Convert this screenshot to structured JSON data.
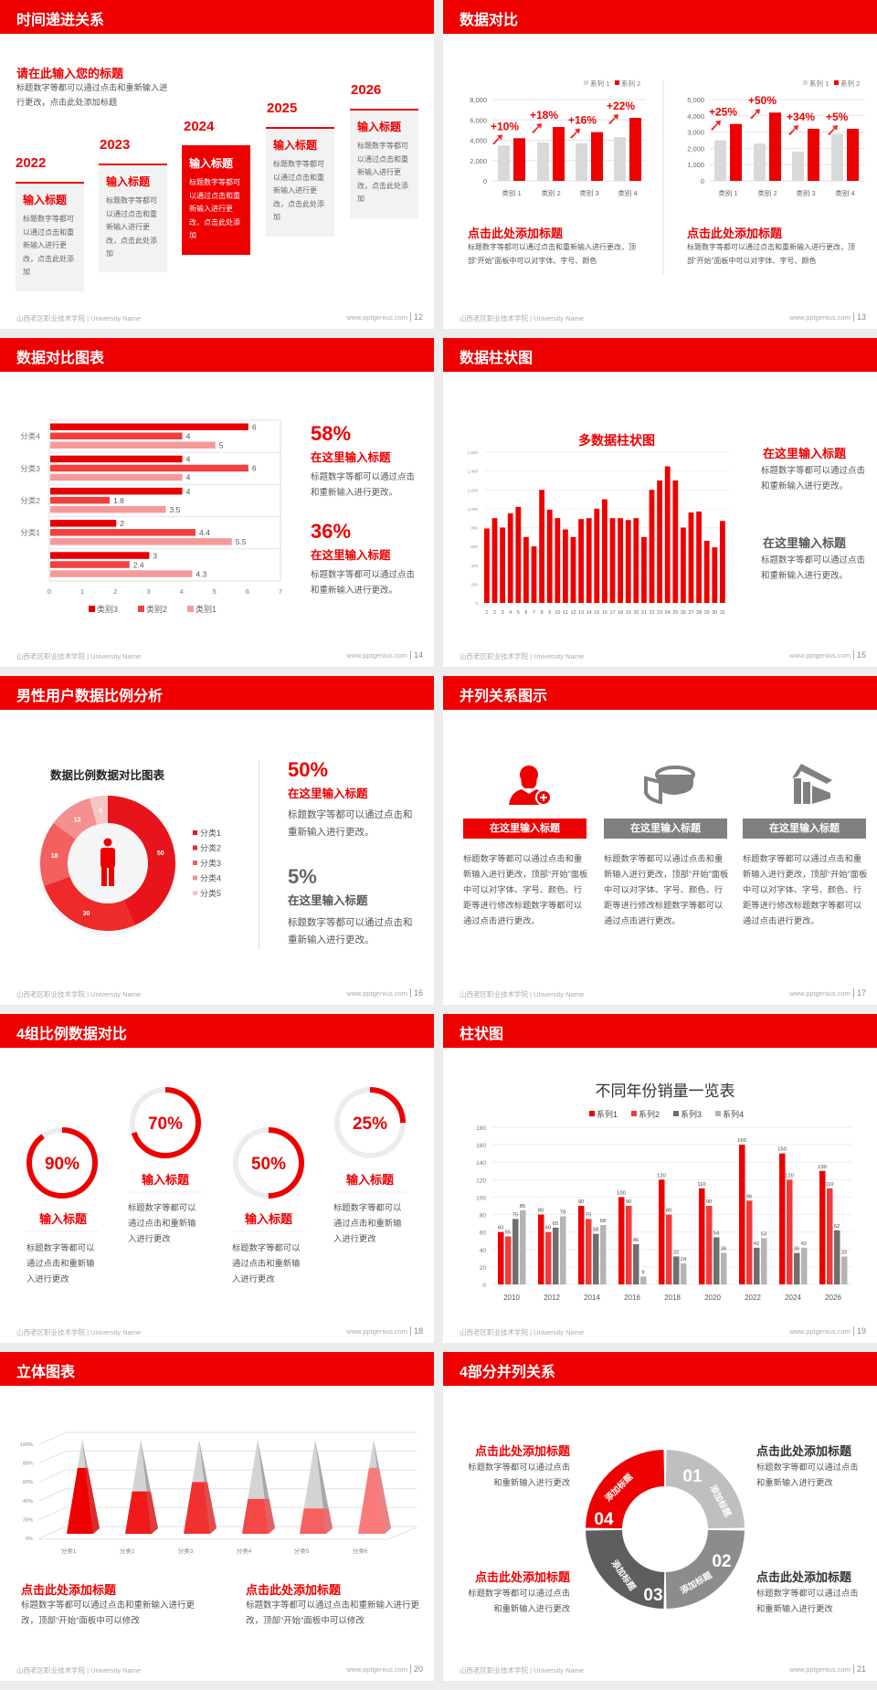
{
  "footer": {
    "school": "山西老区职业技术学院 | University Name",
    "url": "www.pptgenius.com"
  },
  "colors": {
    "accent": "#ee0000",
    "dark_gray": "#595959",
    "mid_gray": "#808080",
    "light_gray": "#bfbfbf"
  },
  "slides": {
    "s12": {
      "title": "时间递进关系",
      "page": "12",
      "heading": "请在此输入您的标题",
      "desc": "标题数字等都可以通过点击和重新输入进行更改，点击此处添加标题",
      "items": [
        {
          "year": "2022",
          "title": "输入标题",
          "text": "标题数字等都可以通过点击和重新输入进行更改，点击此处添加",
          "highlight": false
        },
        {
          "year": "2023",
          "title": "输入标题",
          "text": "标题数字等都可以通过点击和重新输入进行更改，点击此处添加",
          "highlight": false
        },
        {
          "year": "2024",
          "title": "输入标题",
          "text": "标题数字等都可以通过点击和重新输入进行更改，点击此处添加",
          "highlight": true
        },
        {
          "year": "2025",
          "title": "输入标题",
          "text": "标题数字等都可以通过点击和重新输入进行更改，点击此处添加",
          "highlight": false
        },
        {
          "year": "2026",
          "title": "输入标题",
          "text": "标题数字等都可以通过点击和重新输入进行更改，点击此处添加",
          "highlight": false
        }
      ]
    },
    "s13": {
      "title": "数据对比",
      "page": "13",
      "blocks": [
        {
          "title": "点击此处添加标题",
          "text": "标题数字等都可以通过点击和重新输入进行更改，顶部“开始”面板中可以对字体、字号、颜色"
        },
        {
          "title": "点击此处添加标题",
          "text": "标题数字等都可以通过点击和重新输入进行更改，顶部“开始”面板中可以对字体、字号、颜色"
        }
      ]
    },
    "s14": {
      "title": "数据对比图表",
      "page": "14",
      "stats": [
        {
          "value": "58%",
          "title": "在这里输入标题",
          "text": "标题数字等都可以通过点击和重新输入进行更改。"
        },
        {
          "value": "36%",
          "title": "在这里输入标题",
          "text": "标题数字等都可以通过点击和重新输入进行更改。"
        }
      ]
    },
    "s15": {
      "title": "数据柱状图",
      "page": "15",
      "blocks": [
        {
          "title": "在这里输入标题",
          "text": "标题数字等都可以通过点击和重新输入进行更改。"
        },
        {
          "title": "在这里输入标题",
          "text": "标题数字等都可以通过点击和重新输入进行更改。"
        }
      ]
    },
    "s16": {
      "title": "男性用户数据比例分析",
      "page": "16",
      "stats": [
        {
          "value": "50%",
          "title": "在这里输入标题",
          "text": "标题数字等都可以通过点击和重新输入进行更改。"
        },
        {
          "value": "5%",
          "title": "在这里输入标题",
          "text": "标题数字等都可以通过点击和重新输入进行更改。"
        }
      ]
    },
    "s17": {
      "title": "并列关系图示",
      "page": "17",
      "items": [
        {
          "icon": "user-add-icon",
          "label": "在这里输入标题",
          "text": "标题数字等都可以通过点击和重新输入进行更改，顶部“开始”面板中可以对字体、字号、颜色、行距等进行修改标题数字等都可以通过点击进行更改。"
        },
        {
          "icon": "pie-chart-icon",
          "label": "在这里输入标题",
          "text": "标题数字等都可以通过点击和重新输入进行更改，顶部“开始”面板中可以对字体、字号、颜色、行距等进行修改标题数字等都可以通过点击进行更改。"
        },
        {
          "icon": "house-icon",
          "label": "在这里输入标题",
          "text": "标题数字等都可以通过点击和重新输入进行更改，顶部“开始”面板中可以对字体、字号、颜色、行距等进行修改标题数字等都可以通过点击进行更改。"
        }
      ]
    },
    "s18": {
      "title": "4组比例数据对比",
      "page": "18",
      "items": [
        {
          "percent": 90,
          "label": "90%",
          "title": "输入标题",
          "text": "标题数字等都可以通过点击和重新输入进行更改"
        },
        {
          "percent": 70,
          "label": "70%",
          "title": "输入标题",
          "text": "标题数字等都可以通过点击和重新输入进行更改"
        },
        {
          "percent": 50,
          "label": "50%",
          "title": "输入标题",
          "text": "标题数字等都可以通过点击和重新输入进行更改"
        },
        {
          "percent": 25,
          "label": "25%",
          "title": "输入标题",
          "text": "标题数字等都可以通过点击和重新输入进行更改"
        }
      ]
    },
    "s19": {
      "title": "柱状图",
      "page": "19"
    },
    "s20": {
      "title": "立体图表",
      "page": "20",
      "blocks": [
        {
          "title": "点击此处添加标题",
          "text": "标题数字等都可以通过点击和重新输入进行更改，顶部“开始”面板中可以修改"
        },
        {
          "title": "点击此处添加标题",
          "text": "标题数字等都可以通过点击和重新输入进行更改，顶部“开始”面板中可以修改"
        }
      ]
    },
    "s21": {
      "title": "4部分并列关系",
      "page": "21",
      "segments": [
        {
          "num": "01",
          "label": "添加标题"
        },
        {
          "num": "02",
          "label": "添加标题"
        },
        {
          "num": "03",
          "label": "添加标题"
        },
        {
          "num": "04",
          "label": "添加标题"
        }
      ],
      "blocks": [
        {
          "title": "点击此处添加标题",
          "text": "标题数字等都可以通过点击和重新输入进行更改"
        },
        {
          "title": "点击此处添加标题",
          "text": "标题数字等都可以通过点击和重新输入进行更改"
        },
        {
          "title": "点击此处添加标题",
          "text": "标题数字等都可以通过点击和重新输入进行更改"
        },
        {
          "title": "点击此处添加标题",
          "text": "标题数字等都可以通过点击和重新输入进行更改"
        }
      ]
    }
  },
  "chart_data": [
    {
      "type": "bar",
      "categories": [
        "类别 1",
        "类别 2",
        "类别 3",
        "类别 4"
      ],
      "series": [
        {
          "name": "系列 1",
          "values": [
            3500,
            3800,
            3700,
            4300
          ],
          "color": "#d9d9d9"
        },
        {
          "name": "系列 2",
          "values": [
            4200,
            5300,
            4800,
            6200
          ],
          "color": "#ee0000"
        }
      ],
      "annotations": [
        "+10%",
        "+18%",
        "+16%",
        "+22%"
      ],
      "ylim": [
        0,
        8000
      ],
      "yticks": [
        0,
        2000,
        4000,
        6000,
        8000
      ],
      "ytick_labels": [
        "0",
        "2,000",
        "4,000",
        "6,000",
        "8,000"
      ],
      "grid": true,
      "legend": "top-right"
    },
    {
      "type": "bar",
      "categories": [
        "类别 1",
        "类别 2",
        "类别 3",
        "类别 4"
      ],
      "series": [
        {
          "name": "系列 1",
          "values": [
            2500,
            2300,
            1800,
            2900
          ],
          "color": "#d9d9d9"
        },
        {
          "name": "系列 2",
          "values": [
            3500,
            4200,
            3200,
            3200
          ],
          "color": "#ee0000"
        }
      ],
      "annotations": [
        "+25%",
        "+50%",
        "+34%",
        "+5%"
      ],
      "ylim": [
        0,
        5000
      ],
      "yticks": [
        0,
        1000,
        2000,
        3000,
        4000,
        5000
      ],
      "ytick_labels": [
        "0",
        "1,000",
        "2,000",
        "3,000",
        "4,000",
        "5,000"
      ],
      "grid": true,
      "legend": "top-right"
    },
    {
      "type": "bar",
      "orientation": "horizontal",
      "categories": [
        "分类4",
        "分类3",
        "分类2",
        "分类1",
        ""
      ],
      "series": [
        {
          "name": "类别3",
          "values": [
            6,
            4,
            4,
            2,
            3
          ],
          "color": "#e60000"
        },
        {
          "name": "类别2",
          "values": [
            4,
            6,
            1.8,
            4.4,
            2.4
          ],
          "color": "#f04040"
        },
        {
          "name": "类别1",
          "values": [
            5,
            4,
            3.5,
            5.5,
            4.3
          ],
          "color": "#f59a9a"
        }
      ],
      "xlim": [
        0,
        7
      ],
      "xticks": [
        "0",
        "1",
        "2",
        "3",
        "4",
        "5",
        "6",
        "7"
      ],
      "grid": true,
      "legend": "bottom"
    },
    {
      "type": "bar",
      "title": "多数据柱状图",
      "categories": [
        "1",
        "2",
        "3",
        "4",
        "5",
        "6",
        "7",
        "8",
        "9",
        "10",
        "11",
        "12",
        "13",
        "14",
        "15",
        "16",
        "17",
        "18",
        "19",
        "20",
        "21",
        "22",
        "23",
        "24",
        "25",
        "26",
        "27",
        "28",
        "29",
        "30",
        "31"
      ],
      "values": [
        790,
        900,
        800,
        950,
        1020,
        700,
        600,
        1200,
        990,
        900,
        780,
        700,
        890,
        900,
        1000,
        1100,
        900,
        900,
        880,
        900,
        700,
        1200,
        1300,
        1450,
        1300,
        800,
        960,
        970,
        660,
        590,
        870
      ],
      "ylim": [
        0,
        1600
      ],
      "yticks": [
        0,
        200,
        400,
        600,
        800,
        1000,
        1200,
        1400,
        1600
      ],
      "ytick_labels": [
        "0",
        "200",
        "400",
        "600",
        "800",
        "1,000",
        "1,200",
        "1,400",
        "1,600"
      ],
      "grid": true,
      "color": "#ee0000"
    },
    {
      "type": "pie",
      "title": "数据比例数据对比图表",
      "categories": [
        "分类1",
        "分类2",
        "分类3",
        "分类4",
        "分类5"
      ],
      "values": [
        50,
        30,
        18,
        12,
        5
      ],
      "colors": [
        "#e8141b",
        "#ee2a2a",
        "#f26060",
        "#f59090",
        "#f8c4c4"
      ],
      "legend": "right",
      "donut": true
    },
    {
      "type": "bar",
      "title": "不同年份销量一览表",
      "categories": [
        "2010",
        "2012",
        "2014",
        "2016",
        "2018",
        "2020",
        "2022",
        "2024",
        "2026"
      ],
      "series": [
        {
          "name": "系列1",
          "values": [
            60,
            80,
            90,
            100,
            120,
            110,
            160,
            150,
            130
          ],
          "color": "#ee0000"
        },
        {
          "name": "系列2",
          "values": [
            55,
            60,
            75,
            90,
            80,
            90,
            96,
            120,
            110
          ],
          "color": "#f23a3a"
        },
        {
          "name": "系列3",
          "values": [
            75,
            65,
            58,
            46,
            32,
            54,
            42,
            36,
            62
          ],
          "color": "#6f6f6f"
        },
        {
          "name": "系列4",
          "values": [
            85,
            78,
            68,
            9,
            24,
            36,
            53,
            42,
            32
          ],
          "color": "#b4b4b4"
        }
      ],
      "ylim": [
        0,
        180
      ],
      "yticks": [
        0,
        20,
        40,
        60,
        80,
        100,
        120,
        140,
        160,
        180
      ],
      "grid": true,
      "legend": "top"
    },
    {
      "type": "bar",
      "style": "3d-pyramid",
      "categories": [
        "分类1",
        "分类2",
        "分类3",
        "分类4",
        "分类5",
        "分类6"
      ],
      "values": [
        70,
        45,
        55,
        37,
        27,
        70
      ],
      "ylim": [
        0,
        100
      ],
      "ytick_labels": [
        "0%",
        "20%",
        "40%",
        "60%",
        "80%",
        "100%"
      ],
      "colors": [
        "#ee0000",
        "#f01a1a",
        "#f23030",
        "#f44848",
        "#f66060",
        "#f87a7a"
      ],
      "grid": true
    }
  ]
}
